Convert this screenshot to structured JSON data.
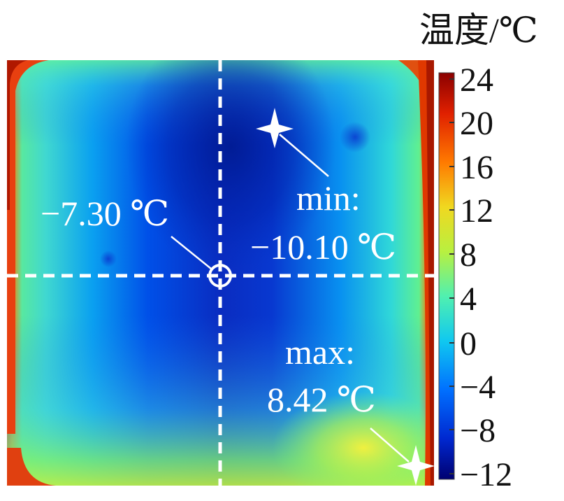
{
  "legend": {
    "title": "温度/℃",
    "ticks": [
      "24",
      "20",
      "16",
      "12",
      "8",
      "4",
      "0",
      "−4",
      "−8",
      "−12"
    ],
    "colors": [
      "#000080",
      "#0028d8",
      "#0070ff",
      "#00c0ff",
      "#40f0c0",
      "#a0f060",
      "#f0e020",
      "#ff8800",
      "#e83000",
      "#900000"
    ]
  },
  "center": {
    "temperature": "−7.30 ℃"
  },
  "min": {
    "label": "min:",
    "temperature": "−10.10 ℃"
  },
  "max": {
    "label": "max:",
    "temperature": "8.42 ℃"
  }
}
